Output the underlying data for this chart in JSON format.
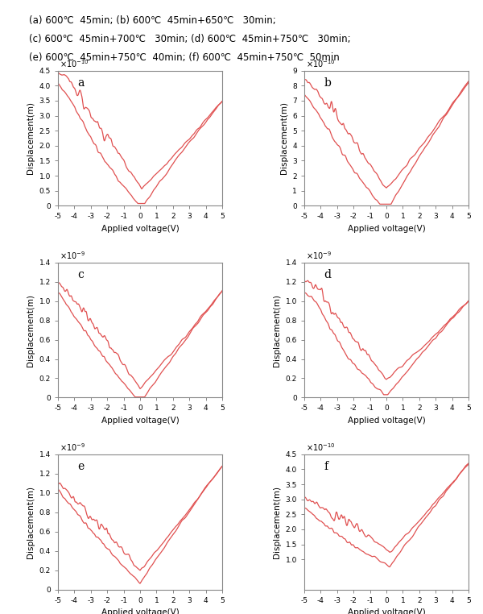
{
  "title_lines": [
    "(a) 600℃  45min; (b) 600℃  45min+650℃   30min;",
    "(c) 600℃  45min+700℃   30min; (d) 600℃  45min+750℃   30min;",
    "(e) 600℃  45min+750℃  40min; (f) 600℃  45min+750℃  50min"
  ],
  "xlabel": "Applied voltage(V)",
  "ylabel": "Displacement(m)",
  "line_color": "#e05050",
  "subplots": [
    {
      "label": "a",
      "exp": "-10",
      "ymax": 4.5,
      "ylim_min": 0,
      "yticks": [
        0,
        0.5,
        1.0,
        1.5,
        2.0,
        2.5,
        3.0,
        3.5,
        4.0,
        4.5
      ]
    },
    {
      "label": "b",
      "exp": "-10",
      "ymax": 9,
      "ylim_min": 0,
      "yticks": [
        0,
        1,
        2,
        3,
        4,
        5,
        6,
        7,
        8,
        9
      ]
    },
    {
      "label": "c",
      "exp": "-9",
      "ymax": 1.4,
      "ylim_min": 0,
      "yticks": [
        0,
        0.2,
        0.4,
        0.6,
        0.8,
        1.0,
        1.2,
        1.4
      ]
    },
    {
      "label": "d",
      "exp": "-9",
      "ymax": 1.4,
      "ylim_min": 0,
      "yticks": [
        0,
        0.2,
        0.4,
        0.6,
        0.8,
        1.0,
        1.2,
        1.4
      ]
    },
    {
      "label": "e",
      "exp": "-9",
      "ymax": 1.4,
      "ylim_min": 0,
      "yticks": [
        0,
        0.2,
        0.4,
        0.6,
        0.8,
        1.0,
        1.2,
        1.4
      ]
    },
    {
      "label": "f",
      "exp": "-10",
      "ymax": 4.5,
      "ylim_min": 0,
      "yticks": [
        1.0,
        1.5,
        2.0,
        2.5,
        3.0,
        3.5,
        4.0,
        4.5
      ]
    }
  ]
}
